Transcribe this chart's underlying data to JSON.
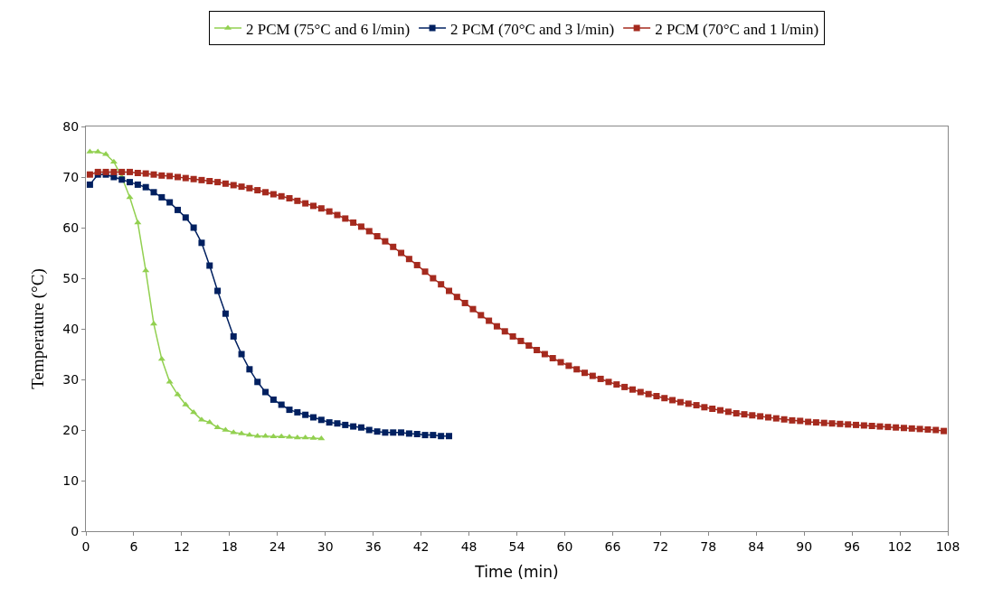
{
  "chart_data": {
    "type": "line",
    "xlabel": "Time (min)",
    "ylabel": "Temperature (°C)",
    "xlim": [
      0,
      108
    ],
    "xticks": [
      0,
      6,
      12,
      18,
      24,
      30,
      36,
      42,
      48,
      54,
      60,
      66,
      72,
      78,
      84,
      90,
      96,
      102,
      108
    ],
    "ylim": [
      0,
      80
    ],
    "yticks": [
      0,
      10,
      20,
      30,
      40,
      50,
      60,
      70,
      80
    ],
    "legend": "top",
    "line_style": "solid",
    "series": [
      {
        "name": "2 PCM (75°C and 6 l/min)",
        "color": "#92d050",
        "marker": "triangle",
        "x": [
          0.5,
          1.5,
          2.5,
          3.5,
          4.5,
          5.5,
          6.5,
          7.5,
          8.5,
          9.5,
          10.5,
          11.5,
          12.5,
          13.5,
          14.5,
          15.5,
          16.5,
          17.5,
          18.5,
          19.5,
          20.5,
          21.5,
          22.5,
          23.5,
          24.5,
          25.5,
          26.5,
          27.5,
          28.5,
          29.5
        ],
        "values": [
          75,
          75,
          74.5,
          73,
          70,
          66,
          61,
          51.5,
          41,
          34,
          29.5,
          27,
          25,
          23.5,
          22,
          21.5,
          20.5,
          20,
          19.5,
          19.3,
          19,
          18.8,
          18.8,
          18.7,
          18.7,
          18.6,
          18.5,
          18.5,
          18.4,
          18.3
        ]
      },
      {
        "name": "2 PCM (70°C and 3 l/min)",
        "color": "#002060",
        "marker": "square",
        "x": [
          0.5,
          1.5,
          2.5,
          3.5,
          4.5,
          5.5,
          6.5,
          7.5,
          8.5,
          9.5,
          10.5,
          11.5,
          12.5,
          13.5,
          14.5,
          15.5,
          16.5,
          17.5,
          18.5,
          19.5,
          20.5,
          21.5,
          22.5,
          23.5,
          24.5,
          25.5,
          26.5,
          27.5,
          28.5,
          29.5,
          30.5,
          31.5,
          32.5,
          33.5,
          34.5,
          35.5,
          36.5,
          37.5,
          38.5,
          39.5,
          40.5,
          41.5,
          42.5,
          43.5,
          44.5,
          45.5
        ],
        "values": [
          68.5,
          70.5,
          70.5,
          70,
          69.5,
          69,
          68.5,
          68,
          67,
          66,
          65,
          63.5,
          62,
          60,
          57,
          52.5,
          47.5,
          43,
          38.5,
          35,
          32,
          29.5,
          27.5,
          26,
          25,
          24,
          23.5,
          23,
          22.5,
          22,
          21.5,
          21.3,
          21,
          20.7,
          20.5,
          20,
          19.7,
          19.5,
          19.5,
          19.5,
          19.3,
          19.2,
          19,
          19,
          18.8,
          18.8
        ]
      },
      {
        "name": "2 PCM (70°C and 1 l/min)",
        "color": "#a52a1e",
        "marker": "square",
        "x": [
          0.5,
          1.5,
          2.5,
          3.5,
          4.5,
          5.5,
          6.5,
          7.5,
          8.5,
          9.5,
          10.5,
          11.5,
          12.5,
          13.5,
          14.5,
          15.5,
          16.5,
          17.5,
          18.5,
          19.5,
          20.5,
          21.5,
          22.5,
          23.5,
          24.5,
          25.5,
          26.5,
          27.5,
          28.5,
          29.5,
          30.5,
          31.5,
          32.5,
          33.5,
          34.5,
          35.5,
          36.5,
          37.5,
          38.5,
          39.5,
          40.5,
          41.5,
          42.5,
          43.5,
          44.5,
          45.5,
          46.5,
          47.5,
          48.5,
          49.5,
          50.5,
          51.5,
          52.5,
          53.5,
          54.5,
          55.5,
          56.5,
          57.5,
          58.5,
          59.5,
          60.5,
          61.5,
          62.5,
          63.5,
          64.5,
          65.5,
          66.5,
          67.5,
          68.5,
          69.5,
          70.5,
          71.5,
          72.5,
          73.5,
          74.5,
          75.5,
          76.5,
          77.5,
          78.5,
          79.5,
          80.5,
          81.5,
          82.5,
          83.5,
          84.5,
          85.5,
          86.5,
          87.5,
          88.5,
          89.5,
          90.5,
          91.5,
          92.5,
          93.5,
          94.5,
          95.5,
          96.5,
          97.5,
          98.5,
          99.5,
          100.5,
          101.5,
          102.5,
          103.5,
          104.5,
          105.5,
          106.5,
          107.5
        ],
        "values": [
          70.5,
          71,
          71,
          71,
          71,
          71,
          70.8,
          70.7,
          70.5,
          70.3,
          70.2,
          70,
          69.8,
          69.6,
          69.4,
          69.2,
          69,
          68.7,
          68.4,
          68.1,
          67.8,
          67.4,
          67,
          66.6,
          66.2,
          65.8,
          65.3,
          64.8,
          64.3,
          63.8,
          63.2,
          62.5,
          61.8,
          61,
          60.2,
          59.3,
          58.3,
          57.3,
          56.2,
          55,
          53.8,
          52.6,
          51.3,
          50,
          48.8,
          47.5,
          46.3,
          45.1,
          43.9,
          42.7,
          41.6,
          40.5,
          39.5,
          38.5,
          37.6,
          36.7,
          35.8,
          35,
          34.2,
          33.4,
          32.7,
          32,
          31.3,
          30.7,
          30.1,
          29.5,
          29,
          28.5,
          28,
          27.5,
          27.1,
          26.7,
          26.3,
          25.9,
          25.5,
          25.2,
          24.9,
          24.5,
          24.2,
          23.9,
          23.6,
          23.3,
          23.1,
          22.9,
          22.7,
          22.5,
          22.3,
          22.1,
          21.9,
          21.8,
          21.6,
          21.5,
          21.4,
          21.3,
          21.2,
          21.1,
          21,
          20.9,
          20.8,
          20.7,
          20.6,
          20.5,
          20.4,
          20.3,
          20.2,
          20.1,
          20,
          19.8
        ]
      }
    ]
  }
}
